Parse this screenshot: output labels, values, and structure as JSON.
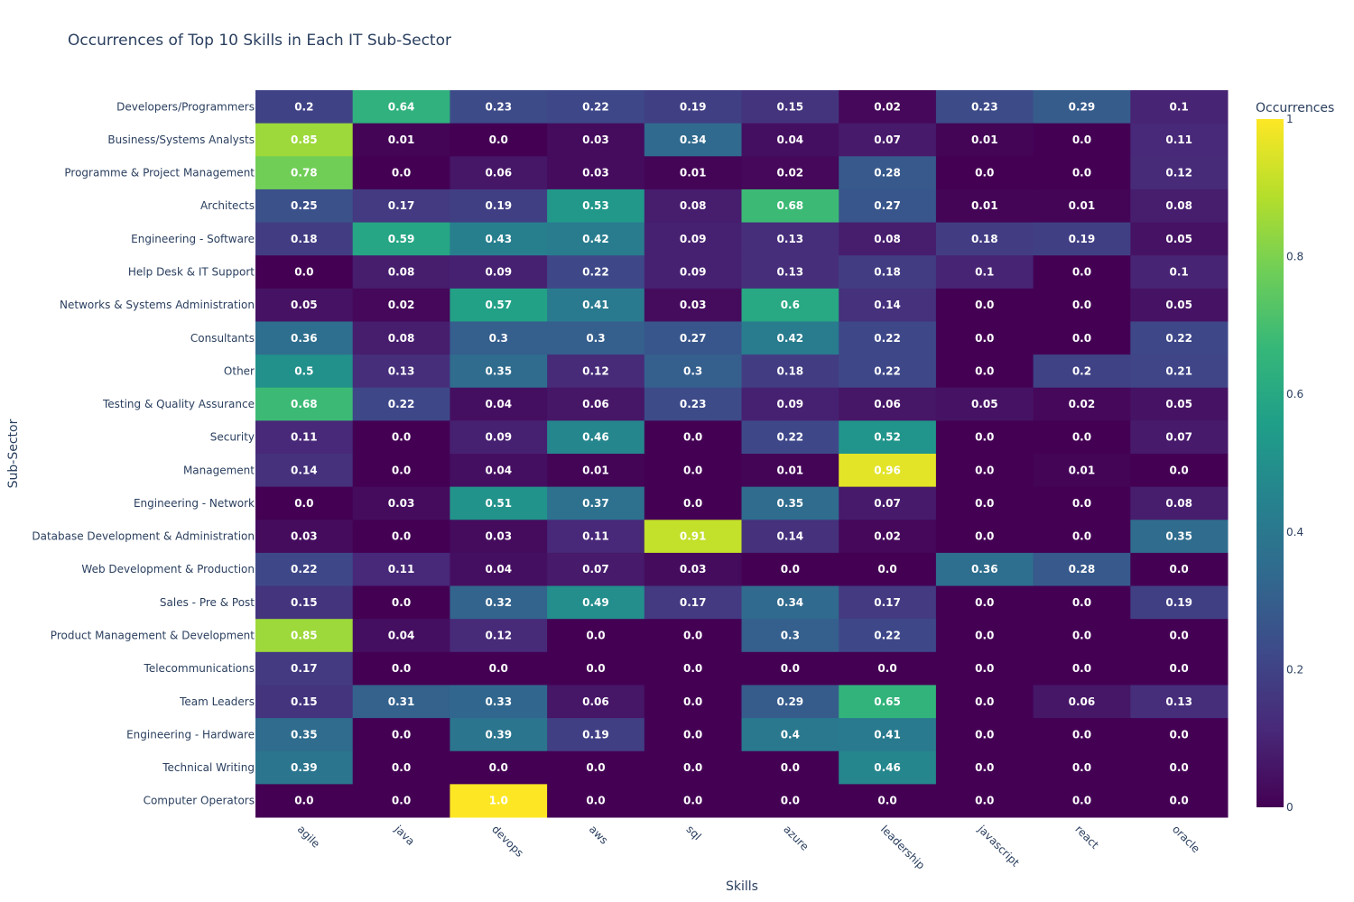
{
  "chart_data": {
    "type": "heatmap",
    "title": "Occurrences of Top 10 Skills in Each IT Sub-Sector",
    "xlabel": "Skills",
    "ylabel": "Sub-Sector",
    "colorscale": "viridis",
    "zrange": [
      0,
      1
    ],
    "colorbar": {
      "title": "Occurrences",
      "ticks": [
        0,
        0.2,
        0.4,
        0.6,
        0.8,
        1
      ],
      "tick_labels": [
        "0",
        "0.2",
        "0.4",
        "0.6",
        "0.8",
        "1"
      ]
    },
    "x": [
      "agile",
      "java",
      "devops",
      "aws",
      "sql",
      "azure",
      "leadership",
      "javascript",
      "react",
      "oracle"
    ],
    "y": [
      "Developers/Programmers",
      "Business/Systems Analysts",
      "Programme & Project Management",
      "Architects",
      "Engineering - Software",
      "Help Desk & IT Support",
      "Networks & Systems Administration",
      "Consultants",
      "Other",
      "Testing & Quality Assurance",
      "Security",
      "Management",
      "Engineering - Network",
      "Database Development & Administration",
      "Web Development & Production",
      "Sales - Pre & Post",
      "Product Management & Development",
      "Telecommunications",
      "Team Leaders",
      "Engineering - Hardware",
      "Technical Writing",
      "Computer Operators"
    ],
    "z": [
      [
        0.2,
        0.64,
        0.23,
        0.22,
        0.19,
        0.15,
        0.02,
        0.23,
        0.29,
        0.1
      ],
      [
        0.85,
        0.01,
        0.0,
        0.03,
        0.34,
        0.04,
        0.07,
        0.01,
        0.0,
        0.11
      ],
      [
        0.78,
        0.0,
        0.06,
        0.03,
        0.01,
        0.02,
        0.28,
        0.0,
        0.0,
        0.12
      ],
      [
        0.25,
        0.17,
        0.19,
        0.53,
        0.08,
        0.68,
        0.27,
        0.01,
        0.01,
        0.08
      ],
      [
        0.18,
        0.59,
        0.43,
        0.42,
        0.09,
        0.13,
        0.08,
        0.18,
        0.19,
        0.05
      ],
      [
        0.0,
        0.08,
        0.09,
        0.22,
        0.09,
        0.13,
        0.18,
        0.1,
        0.0,
        0.1
      ],
      [
        0.05,
        0.02,
        0.57,
        0.41,
        0.03,
        0.6,
        0.14,
        0.0,
        0.0,
        0.05
      ],
      [
        0.36,
        0.08,
        0.3,
        0.3,
        0.27,
        0.42,
        0.22,
        0.0,
        0.0,
        0.22
      ],
      [
        0.5,
        0.13,
        0.35,
        0.12,
        0.3,
        0.18,
        0.22,
        0.0,
        0.2,
        0.21
      ],
      [
        0.68,
        0.22,
        0.04,
        0.06,
        0.23,
        0.09,
        0.06,
        0.05,
        0.02,
        0.05
      ],
      [
        0.11,
        0.0,
        0.09,
        0.46,
        0.0,
        0.22,
        0.52,
        0.0,
        0.0,
        0.07
      ],
      [
        0.14,
        0.0,
        0.04,
        0.01,
        0.0,
        0.01,
        0.96,
        0.0,
        0.01,
        0.0
      ],
      [
        0.0,
        0.03,
        0.51,
        0.37,
        0.0,
        0.35,
        0.07,
        0.0,
        0.0,
        0.08
      ],
      [
        0.03,
        0.0,
        0.03,
        0.11,
        0.91,
        0.14,
        0.02,
        0.0,
        0.0,
        0.35
      ],
      [
        0.22,
        0.11,
        0.04,
        0.07,
        0.03,
        0.0,
        0.0,
        0.36,
        0.28,
        0.0
      ],
      [
        0.15,
        0.0,
        0.32,
        0.49,
        0.17,
        0.34,
        0.17,
        0.0,
        0.0,
        0.19
      ],
      [
        0.85,
        0.04,
        0.12,
        0.0,
        0.0,
        0.3,
        0.22,
        0.0,
        0.0,
        0.0
      ],
      [
        0.17,
        0.0,
        0.0,
        0.0,
        0.0,
        0.0,
        0.0,
        0.0,
        0.0,
        0.0
      ],
      [
        0.15,
        0.31,
        0.33,
        0.06,
        0.0,
        0.29,
        0.65,
        0.0,
        0.06,
        0.13
      ],
      [
        0.35,
        0.0,
        0.39,
        0.19,
        0.0,
        0.4,
        0.41,
        0.0,
        0.0,
        0.0
      ],
      [
        0.39,
        0.0,
        0.0,
        0.0,
        0.0,
        0.0,
        0.46,
        0.0,
        0.0,
        0.0
      ],
      [
        0.0,
        0.0,
        1.0,
        0.0,
        0.0,
        0.0,
        0.0,
        0.0,
        0.0,
        0.0
      ]
    ],
    "text": [
      [
        "0.2",
        "0.64",
        "0.23",
        "0.22",
        "0.19",
        "0.15",
        "0.02",
        "0.23",
        "0.29",
        "0.1"
      ],
      [
        "0.85",
        "0.01",
        "0.0",
        "0.03",
        "0.34",
        "0.04",
        "0.07",
        "0.01",
        "0.0",
        "0.11"
      ],
      [
        "0.78",
        "0.0",
        "0.06",
        "0.03",
        "0.01",
        "0.02",
        "0.28",
        "0.0",
        "0.0",
        "0.12"
      ],
      [
        "0.25",
        "0.17",
        "0.19",
        "0.53",
        "0.08",
        "0.68",
        "0.27",
        "0.01",
        "0.01",
        "0.08"
      ],
      [
        "0.18",
        "0.59",
        "0.43",
        "0.42",
        "0.09",
        "0.13",
        "0.08",
        "0.18",
        "0.19",
        "0.05"
      ],
      [
        "0.0",
        "0.08",
        "0.09",
        "0.22",
        "0.09",
        "0.13",
        "0.18",
        "0.1",
        "0.0",
        "0.1"
      ],
      [
        "0.05",
        "0.02",
        "0.57",
        "0.41",
        "0.03",
        "0.6",
        "0.14",
        "0.0",
        "0.0",
        "0.05"
      ],
      [
        "0.36",
        "0.08",
        "0.3",
        "0.3",
        "0.27",
        "0.42",
        "0.22",
        "0.0",
        "0.0",
        "0.22"
      ],
      [
        "0.5",
        "0.13",
        "0.35",
        "0.12",
        "0.3",
        "0.18",
        "0.22",
        "0.0",
        "0.2",
        "0.21"
      ],
      [
        "0.68",
        "0.22",
        "0.04",
        "0.06",
        "0.23",
        "0.09",
        "0.06",
        "0.05",
        "0.02",
        "0.05"
      ],
      [
        "0.11",
        "0.0",
        "0.09",
        "0.46",
        "0.0",
        "0.22",
        "0.52",
        "0.0",
        "0.0",
        "0.07"
      ],
      [
        "0.14",
        "0.0",
        "0.04",
        "0.01",
        "0.0",
        "0.01",
        "0.96",
        "0.0",
        "0.01",
        "0.0"
      ],
      [
        "0.0",
        "0.03",
        "0.51",
        "0.37",
        "0.0",
        "0.35",
        "0.07",
        "0.0",
        "0.0",
        "0.08"
      ],
      [
        "0.03",
        "0.0",
        "0.03",
        "0.11",
        "0.91",
        "0.14",
        "0.02",
        "0.0",
        "0.0",
        "0.35"
      ],
      [
        "0.22",
        "0.11",
        "0.04",
        "0.07",
        "0.03",
        "0.0",
        "0.0",
        "0.36",
        "0.28",
        "0.0"
      ],
      [
        "0.15",
        "0.0",
        "0.32",
        "0.49",
        "0.17",
        "0.34",
        "0.17",
        "0.0",
        "0.0",
        "0.19"
      ],
      [
        "0.85",
        "0.04",
        "0.12",
        "0.0",
        "0.0",
        "0.3",
        "0.22",
        "0.0",
        "0.0",
        "0.0"
      ],
      [
        "0.17",
        "0.0",
        "0.0",
        "0.0",
        "0.0",
        "0.0",
        "0.0",
        "0.0",
        "0.0",
        "0.0"
      ],
      [
        "0.15",
        "0.31",
        "0.33",
        "0.06",
        "0.0",
        "0.29",
        "0.65",
        "0.0",
        "0.06",
        "0.13"
      ],
      [
        "0.35",
        "0.0",
        "0.39",
        "0.19",
        "0.0",
        "0.4",
        "0.41",
        "0.0",
        "0.0",
        "0.0"
      ],
      [
        "0.39",
        "0.0",
        "0.0",
        "0.0",
        "0.0",
        "0.0",
        "0.46",
        "0.0",
        "0.0",
        "0.0"
      ],
      [
        "0.0",
        "0.0",
        "1.0",
        "0.0",
        "0.0",
        "0.0",
        "0.0",
        "0.0",
        "0.0",
        "0.0"
      ]
    ]
  }
}
